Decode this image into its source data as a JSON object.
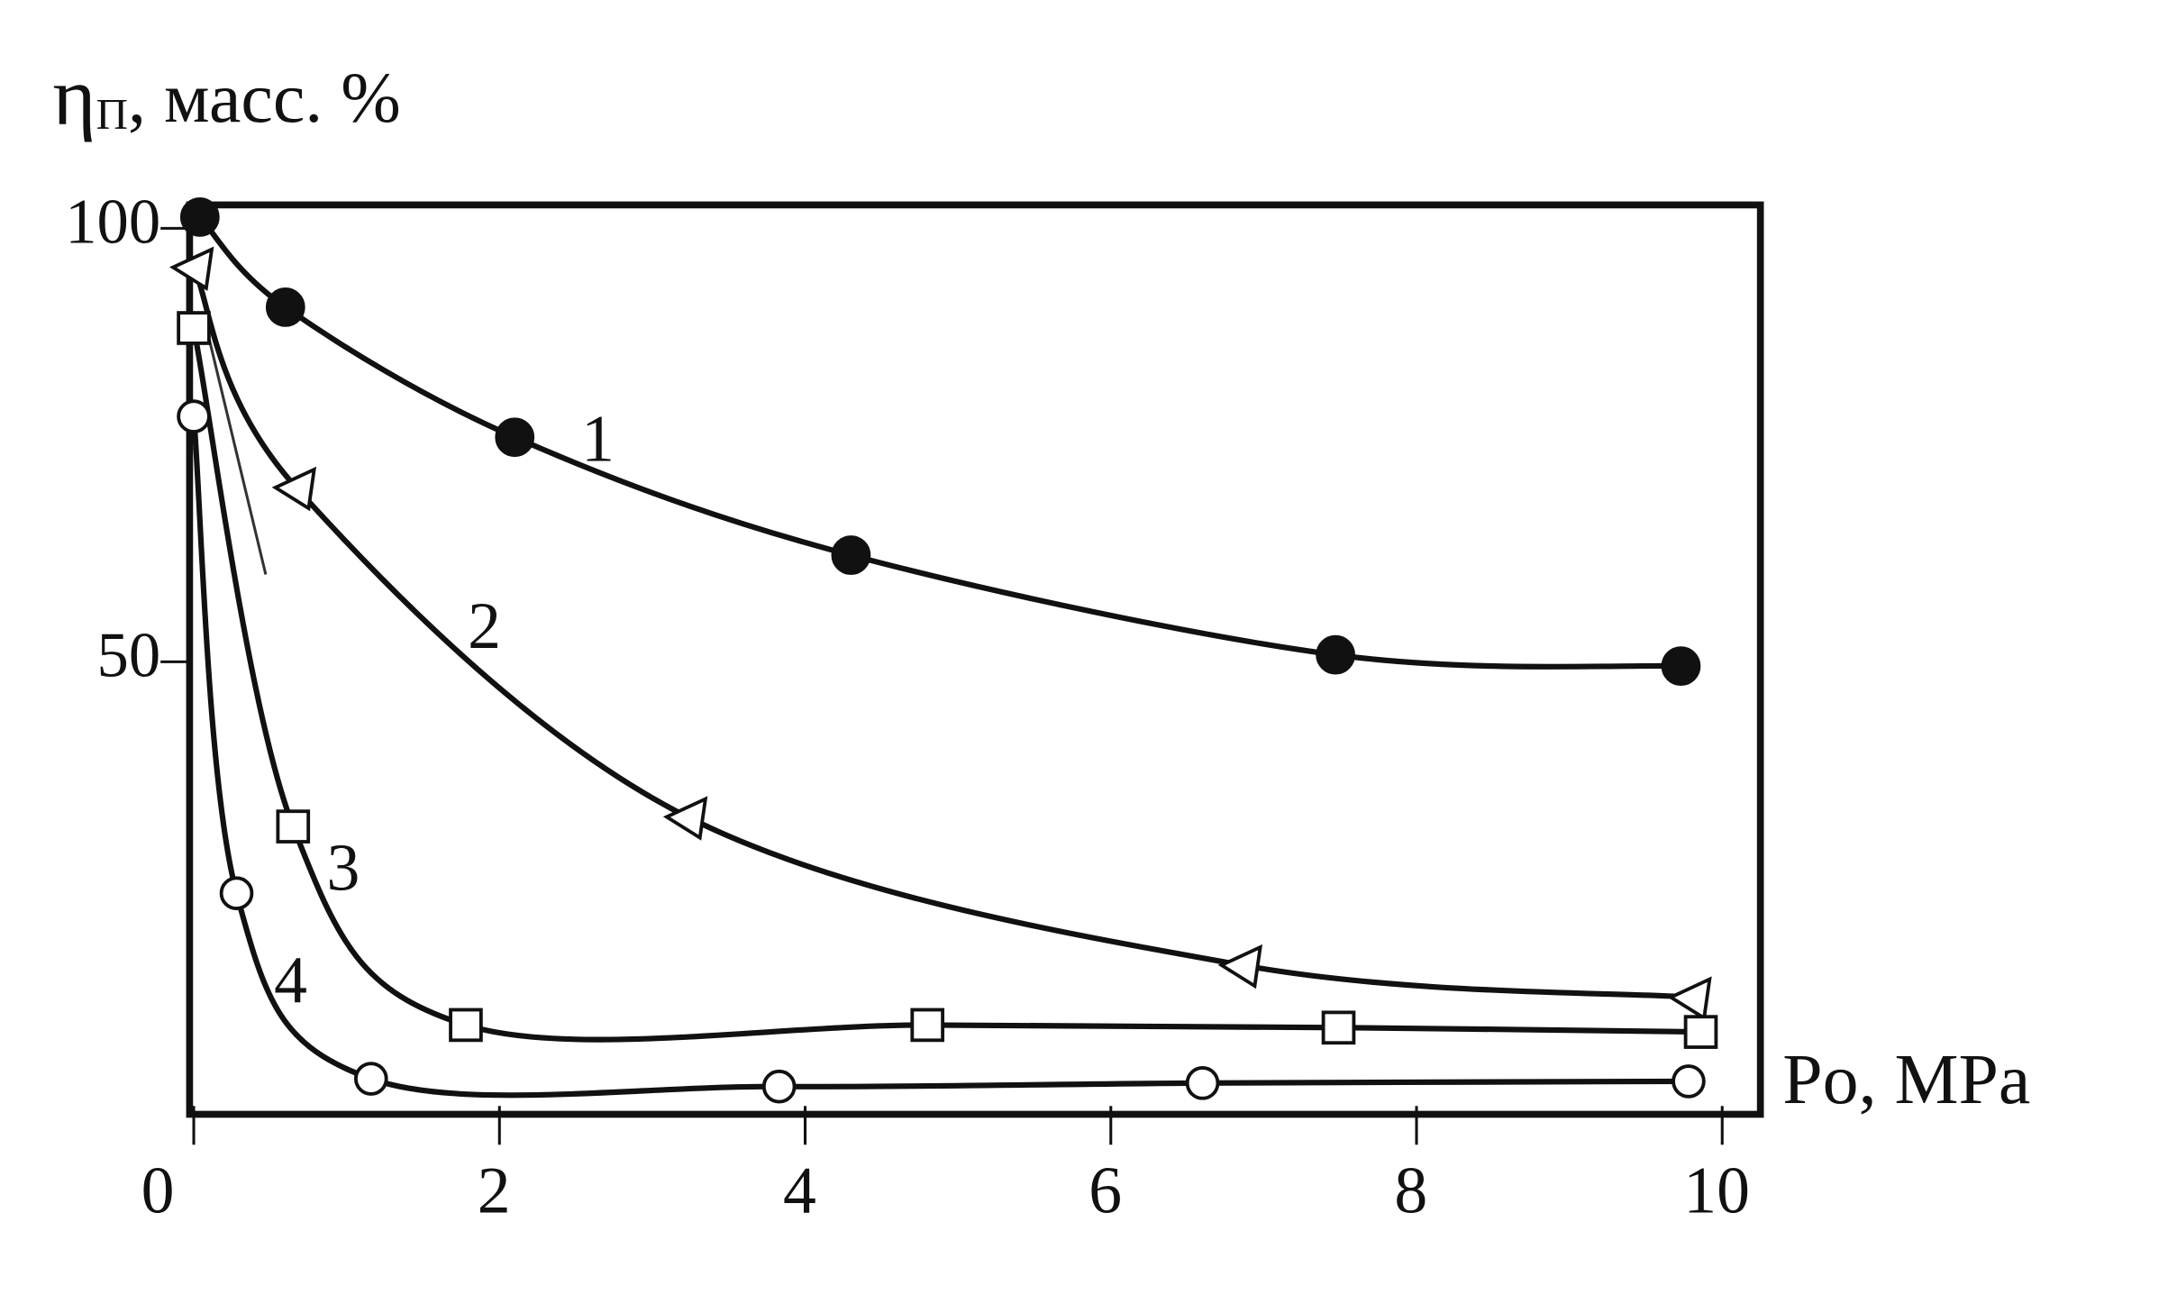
{
  "chart_data": {
    "type": "line",
    "ylabel_symbol": "η",
    "ylabel_subscript": "П",
    "ylabel_units": ", масс. %",
    "xlabel": "Po, MPa",
    "xlim": [
      0,
      10.25
    ],
    "ylim": [
      -2.2,
      102.7
    ],
    "xticks": [
      0,
      2,
      4,
      6,
      8,
      10
    ],
    "yticks": [
      50,
      100
    ],
    "color": "#111111",
    "series": [
      {
        "name": "1",
        "marker": "filled-circle",
        "x": [
          0.04,
          0.6,
          2.1,
          4.3,
          7.47,
          9.73
        ],
        "values": [
          101.3,
          90.9,
          75.9,
          62.3,
          50.8,
          49.5
        ]
      },
      {
        "name": "2",
        "marker": "triangle",
        "x": [
          0,
          0.67,
          3.23,
          6.86,
          9.8
        ],
        "values": [
          95.5,
          70.1,
          32.1,
          15.0,
          11.3
        ]
      },
      {
        "name": "3",
        "marker": "square",
        "x": [
          0,
          0.65,
          1.78,
          4.8,
          7.49,
          9.86
        ],
        "values": [
          88.5,
          31.0,
          8.1,
          8.1,
          7.8,
          7.3
        ]
      },
      {
        "name": "4",
        "marker": "open-circle",
        "x": [
          0,
          0.28,
          1.16,
          3.83,
          6.6,
          9.78
        ],
        "values": [
          78.3,
          23.3,
          1.9,
          1.0,
          1.4,
          1.6
        ]
      }
    ]
  }
}
